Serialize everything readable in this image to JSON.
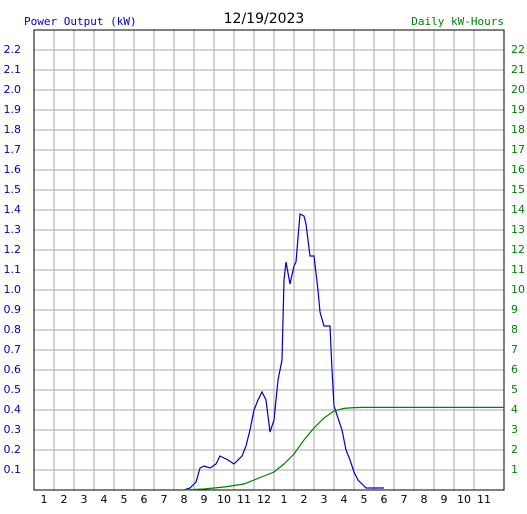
{
  "chart_data": {
    "type": "line",
    "title": "12/19/2023",
    "y_label": "Power Output (kW)",
    "y2_label": "Daily kW-Hours",
    "xlim": [
      0.5,
      24
    ],
    "xticks": [
      1,
      2,
      3,
      4,
      5,
      6,
      7,
      8,
      9,
      10,
      11,
      12,
      {
        "value": 13,
        "label": "1"
      },
      {
        "value": 14,
        "label": "2"
      },
      {
        "value": 15,
        "label": "3"
      },
      {
        "value": 16,
        "label": "4"
      },
      {
        "value": 17,
        "label": "5"
      },
      {
        "value": 18,
        "label": "6"
      },
      {
        "value": 19,
        "label": "7"
      },
      {
        "value": 20,
        "label": "8"
      },
      {
        "value": 21,
        "label": "9"
      },
      {
        "value": 22,
        "label": "10"
      },
      {
        "value": 23,
        "label": "11"
      }
    ],
    "ylim": [
      0,
      2.3
    ],
    "yticks": [
      0.1,
      0.2,
      0.3,
      0.4,
      0.5,
      0.6,
      0.7,
      0.8,
      0.9,
      {
        "value": 1,
        "label": "1.0"
      },
      1.1,
      1.2,
      1.3,
      1.4,
      1.5,
      1.6,
      1.7,
      1.8,
      1.9,
      {
        "value": 2,
        "label": "2.0"
      },
      2.1,
      2.2
    ],
    "y2lim": [
      0,
      23
    ],
    "y2ticks": [
      1,
      2,
      3,
      4,
      5,
      6,
      7,
      8,
      9,
      10,
      11,
      12,
      13,
      14,
      15,
      16,
      17,
      18,
      19,
      20,
      21,
      22
    ],
    "grid": true,
    "series": [
      {
        "name": "Power Output (kW)",
        "color": "#0000c0",
        "x": [
          8.0,
          8.3,
          8.6,
          8.8,
          9.0,
          9.3,
          9.6,
          9.8,
          10.0,
          10.2,
          10.5,
          10.7,
          10.9,
          11.1,
          11.3,
          11.5,
          11.7,
          11.9,
          12.1,
          12.3,
          12.5,
          12.7,
          12.9,
          13.0,
          13.1,
          13.3,
          13.5,
          13.6,
          13.8,
          14.0,
          14.1,
          14.3,
          14.5,
          14.7,
          14.8,
          15.0,
          15.3,
          15.4,
          15.5,
          15.7,
          15.9,
          16.1,
          16.3,
          16.5,
          16.7,
          16.9,
          17.1,
          18.0
        ],
        "values": [
          0,
          0.01,
          0.04,
          0.11,
          0.12,
          0.11,
          0.13,
          0.17,
          0.16,
          0.15,
          0.13,
          0.15,
          0.17,
          0.22,
          0.3,
          0.4,
          0.45,
          0.49,
          0.45,
          0.29,
          0.35,
          0.55,
          0.65,
          1.05,
          1.14,
          1.03,
          1.12,
          1.14,
          1.38,
          1.37,
          1.33,
          1.17,
          1.17,
          1.0,
          0.89,
          0.82,
          0.82,
          0.6,
          0.42,
          0.36,
          0.3,
          0.2,
          0.15,
          0.09,
          0.05,
          0.03,
          0.01,
          0.01
        ]
      },
      {
        "name": "Daily kW-Hours",
        "color": "#008000",
        "axis": "y2",
        "x": [
          8.0,
          9,
          10,
          11,
          12,
          12.5,
          13,
          13.5,
          14,
          14.5,
          15,
          15.5,
          16,
          16.5,
          17,
          24
        ],
        "values": [
          0,
          0.05,
          0.15,
          0.3,
          0.7,
          0.9,
          1.3,
          1.8,
          2.5,
          3.1,
          3.6,
          3.95,
          4.08,
          4.12,
          4.13,
          4.13
        ]
      }
    ]
  }
}
